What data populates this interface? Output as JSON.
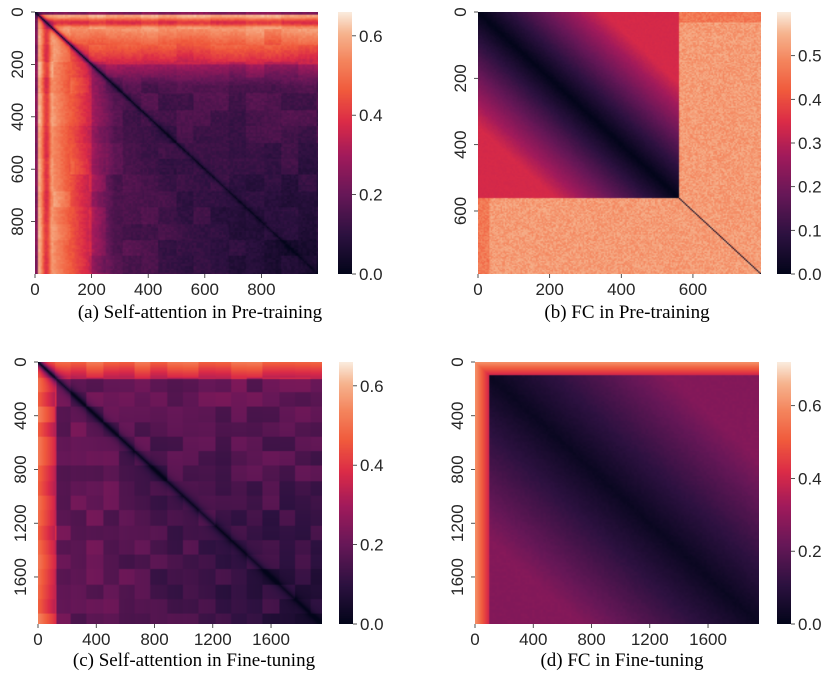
{
  "chart_data": [
    {
      "type": "heatmap",
      "caption": "(a)  Self-attention in Pre-training",
      "x_ticks": [
        0,
        200,
        400,
        600,
        800
      ],
      "y_ticks": [
        0,
        200,
        400,
        600,
        800
      ],
      "x_range": [
        0,
        1000
      ],
      "y_range": [
        0,
        1000
      ],
      "colorbar": {
        "min": 0.0,
        "max": 0.66,
        "ticks": [
          0.0,
          0.2,
          0.4,
          0.6
        ],
        "tick_labels": [
          "0.0",
          "0.2",
          "0.4",
          "0.6"
        ]
      },
      "pattern": "self-attention",
      "params": {
        "edge": 280,
        "band": 0.62,
        "mid": 0.16,
        "low": 0.05,
        "block": 62
      }
    },
    {
      "type": "heatmap",
      "caption": "(b)  FC in Pre-training",
      "x_ticks": [
        0,
        200,
        400,
        600
      ],
      "y_ticks": [
        0,
        200,
        400,
        600
      ],
      "x_range": [
        0,
        790
      ],
      "y_range": [
        0,
        790
      ],
      "colorbar": {
        "min": 0.0,
        "max": 0.6,
        "ticks": [
          0.0,
          0.1,
          0.2,
          0.3,
          0.4,
          0.5
        ],
        "tick_labels": [
          "0.0",
          "0.1",
          "0.2",
          "0.3",
          "0.4",
          "0.5"
        ]
      },
      "pattern": "fc",
      "params": {
        "split": 560,
        "inner_max": 0.34,
        "outer": 0.52
      }
    },
    {
      "type": "heatmap",
      "caption": "(c)  Self-attention in Fine-tuning",
      "x_ticks": [
        0,
        400,
        800,
        1200,
        1600
      ],
      "y_ticks": [
        0,
        400,
        800,
        1200,
        1600
      ],
      "x_range": [
        0,
        1950
      ],
      "y_range": [
        0,
        1950
      ],
      "colorbar": {
        "min": 0.0,
        "max": 0.66,
        "ticks": [
          0.0,
          0.2,
          0.4,
          0.6
        ],
        "tick_labels": [
          "0.0",
          "0.2",
          "0.4",
          "0.6"
        ]
      },
      "pattern": "self-attention-ft",
      "params": {
        "band": 0.5,
        "mid": 0.2,
        "low": 0.08,
        "block": 110
      }
    },
    {
      "type": "heatmap",
      "caption": "(d)  FC in Fine-tuning",
      "x_ticks": [
        0,
        400,
        800,
        1200,
        1600
      ],
      "y_ticks": [
        0,
        400,
        800,
        1200,
        1600
      ],
      "x_range": [
        0,
        1950
      ],
      "y_range": [
        0,
        1950
      ],
      "colorbar": {
        "min": 0.0,
        "max": 0.72,
        "ticks": [
          0.0,
          0.2,
          0.4,
          0.6
        ],
        "tick_labels": [
          "0.0",
          "0.2",
          "0.4",
          "0.6"
        ]
      },
      "pattern": "fc-ft",
      "params": {
        "edge": 0.6,
        "inner": 0.25
      }
    }
  ]
}
